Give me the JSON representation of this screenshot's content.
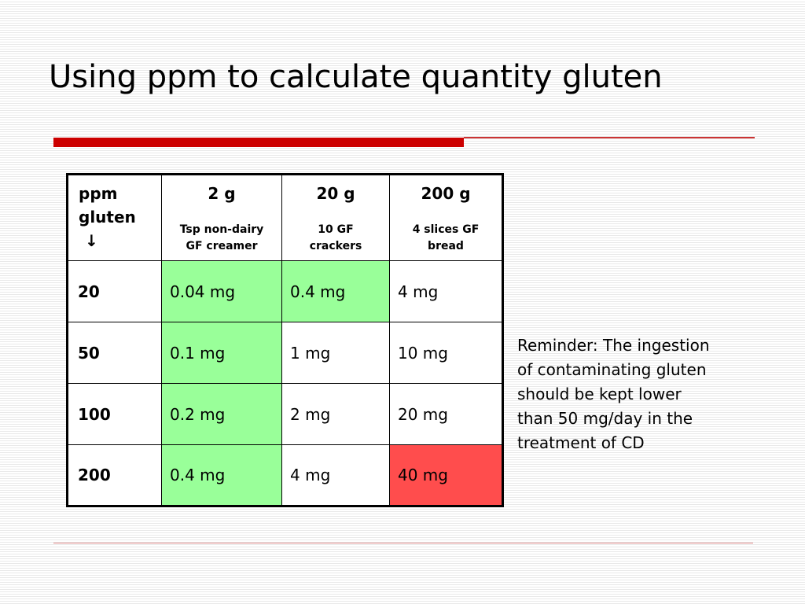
{
  "slide": {
    "title": "Using ppm to calculate quantity gluten",
    "reminder": "Reminder: The ingestion of contaminating gluten should be kept lower than 50 mg/day in the treatment of CD"
  },
  "table": {
    "header": {
      "ppm_label_line1": "ppm",
      "ppm_label_line2": "gluten",
      "arrow": "↓",
      "columns": [
        {
          "amount": "2 g",
          "desc_line1": "Tsp non-dairy",
          "desc_line2": "GF creamer"
        },
        {
          "amount": "20 g",
          "desc_line1": "10 GF",
          "desc_line2": "crackers"
        },
        {
          "amount": "200 g",
          "desc_line1": "4 slices GF",
          "desc_line2": "bread"
        }
      ]
    },
    "rows": [
      {
        "ppm": "20",
        "values": [
          "0.04 mg",
          "0.4 mg",
          "4 mg"
        ],
        "status": [
          "green",
          "green",
          "none"
        ]
      },
      {
        "ppm": "50",
        "values": [
          "0.1 mg",
          "1 mg",
          "10 mg"
        ],
        "status": [
          "green",
          "none",
          "none"
        ]
      },
      {
        "ppm": "100",
        "values": [
          "0.2 mg",
          "2 mg",
          "20 mg"
        ],
        "status": [
          "green",
          "none",
          "none"
        ]
      },
      {
        "ppm": "200",
        "values": [
          "0.4 mg",
          "4 mg",
          "40 mg"
        ],
        "status": [
          "green",
          "none",
          "red"
        ]
      }
    ]
  },
  "colors": {
    "safe_fill": "#99ff99",
    "exceeds_fill": "#ff4d4d",
    "accent_red": "#cc0000"
  }
}
